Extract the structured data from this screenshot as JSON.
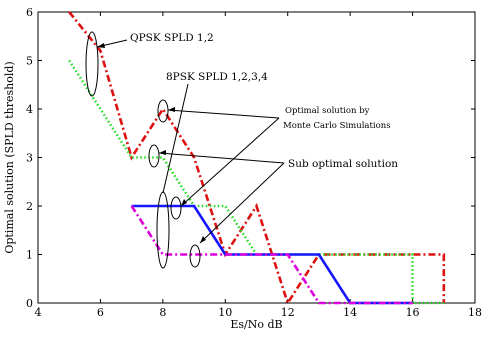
{
  "chart_data": {
    "type": "line",
    "xlabel": "Es/No dB",
    "ylabel": "Optimal solution (SPLD threshold)",
    "xlim": [
      4,
      18
    ],
    "ylim": [
      0,
      6
    ],
    "xticks": [
      4,
      6,
      8,
      10,
      12,
      14,
      16,
      18
    ],
    "yticks": [
      0,
      1,
      2,
      3,
      4,
      5,
      6
    ],
    "grid": false,
    "series": [
      {
        "color": "#dd1111",
        "dash": "dash-dot",
        "points": [
          [
            5,
            6
          ],
          [
            6,
            5.2
          ],
          [
            7,
            3
          ],
          [
            8,
            4
          ],
          [
            9,
            3
          ],
          [
            10,
            1
          ],
          [
            11,
            2
          ],
          [
            12,
            0
          ],
          [
            13,
            1
          ],
          [
            17,
            1
          ],
          [
            17,
            0
          ]
        ]
      },
      {
        "color": "#22dd22",
        "dash": "dotted",
        "points": [
          [
            5,
            5
          ],
          [
            7,
            3
          ],
          [
            8,
            3
          ],
          [
            9,
            2
          ],
          [
            10,
            2
          ],
          [
            11,
            1
          ],
          [
            16,
            1
          ],
          [
            16,
            0
          ],
          [
            17,
            0
          ]
        ]
      },
      {
        "color": "#1515ff",
        "dash": "solid",
        "points": [
          [
            7,
            2
          ],
          [
            9,
            2
          ],
          [
            10,
            1
          ],
          [
            13,
            1
          ],
          [
            14,
            0
          ],
          [
            16,
            0
          ]
        ]
      },
      {
        "color": "#dd00dd",
        "dash": "dash-dot",
        "points": [
          [
            7,
            2
          ],
          [
            8,
            1
          ],
          [
            12,
            1
          ],
          [
            13,
            0
          ],
          [
            16,
            0
          ]
        ]
      }
    ],
    "annotations": [
      {
        "text": "QPSK SPLD 1,2"
      },
      {
        "text": "8PSK SPLD 1,2,3,4"
      },
      {
        "text": "Optimal solution by"
      },
      {
        "text": "Monte Carlo Simulations"
      },
      {
        "text": "Sub optimal solution"
      }
    ]
  }
}
